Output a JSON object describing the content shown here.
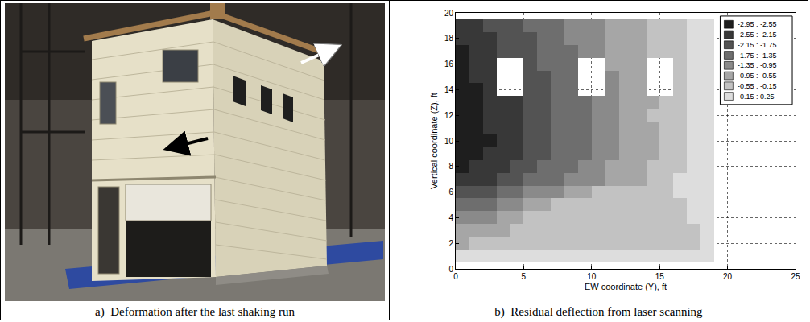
{
  "captions": [
    "a)  Deformation after the last shaking run",
    "b)  Residual deflection from laser scanning"
  ],
  "chart_data": {
    "type": "heatmap",
    "xlabel": "EW coordinate (Y), ft",
    "ylabel": "Vertical coordinate (Z), ft",
    "xlim": [
      0,
      25
    ],
    "xticks": [
      0,
      5,
      10,
      15,
      20,
      25
    ],
    "ylim": [
      0,
      20
    ],
    "yticks": [
      0,
      2,
      4,
      6,
      8,
      10,
      12,
      14,
      16,
      18,
      20
    ],
    "grid": true,
    "legend": "top right",
    "levels": [
      {
        "label": "-2.95 : -2.55",
        "range": [
          -2.95,
          -2.55
        ],
        "color": "#1e1e1e"
      },
      {
        "label": "-2.55 : -2.15",
        "range": [
          -2.55,
          -2.15
        ],
        "color": "#383838"
      },
      {
        "label": "-2.15 : -1.75",
        "range": [
          -2.15,
          -1.75
        ],
        "color": "#535353"
      },
      {
        "label": "-1.75 : -1.35",
        "range": [
          -1.75,
          -1.35
        ],
        "color": "#6e6e6e"
      },
      {
        "label": "-1.35 : -0.95",
        "range": [
          -1.35,
          -0.95
        ],
        "color": "#8a8a8a"
      },
      {
        "label": "-0.95 : -0.55",
        "range": [
          -0.95,
          -0.55
        ],
        "color": "#a6a6a6"
      },
      {
        "label": "-0.55 : -0.15",
        "range": [
          -0.55,
          -0.15
        ],
        "color": "#c2c2c2"
      },
      {
        "label": "-0.15 : 0.25",
        "range": [
          -0.15,
          0.25
        ],
        "color": "#dddddd"
      }
    ],
    "x": [
      0.5,
      1.5,
      2.5,
      3.5,
      4.5,
      5.5,
      6.5,
      7.5,
      8.5,
      9.5,
      10.5,
      11.5,
      12.5,
      13.5,
      14.5,
      15.5,
      16.5,
      17.5,
      18.5
    ],
    "y": [
      1,
      2,
      3,
      4,
      5,
      6,
      7,
      8,
      9,
      10,
      11,
      12,
      13,
      14,
      15,
      16,
      17,
      18,
      19
    ],
    "z": [
      [
        -0.12,
        -0.11,
        -0.1,
        -0.1,
        -0.09,
        -0.08,
        -0.08,
        -0.07,
        -0.07,
        -0.06,
        -0.06,
        -0.05,
        -0.05,
        -0.05,
        -0.04,
        -0.04,
        -0.03,
        -0.03,
        -0.02
      ],
      [
        -0.63,
        -0.53,
        -0.43,
        -0.36,
        -0.31,
        -0.29,
        -0.28,
        -0.27,
        -0.27,
        -0.26,
        -0.26,
        -0.25,
        -0.25,
        -0.24,
        -0.23,
        -0.22,
        -0.2,
        -0.17,
        -0.08
      ],
      [
        -0.93,
        -0.81,
        -0.69,
        -0.57,
        -0.45,
        -0.36,
        -0.32,
        -0.3,
        -0.29,
        -0.29,
        -0.28,
        -0.28,
        -0.27,
        -0.27,
        -0.26,
        -0.25,
        -0.22,
        -0.18,
        -0.08
      ],
      [
        -1.28,
        -1.13,
        -0.98,
        -0.83,
        -0.68,
        -0.53,
        -0.38,
        -0.33,
        -0.31,
        -0.3,
        -0.3,
        -0.29,
        -0.29,
        -0.28,
        -0.27,
        -0.25,
        -0.22,
        -0.1,
        -0.06
      ],
      [
        -1.73,
        -1.56,
        -1.39,
        -1.22,
        -1.05,
        -0.88,
        -0.71,
        -0.54,
        -0.37,
        -0.33,
        -0.31,
        -0.3,
        -0.3,
        -0.29,
        -0.28,
        -0.26,
        -0.22,
        -0.1,
        -0.06
      ],
      [
        -2.13,
        -1.97,
        -1.81,
        -1.65,
        -1.49,
        -1.33,
        -1.17,
        -1.01,
        -0.85,
        -0.69,
        -0.53,
        -0.37,
        -0.32,
        -0.3,
        -0.28,
        -0.25,
        -0.12,
        -0.08,
        -0.05
      ],
      [
        -2.45,
        -2.31,
        -2.16,
        -2.02,
        -1.87,
        -1.73,
        -1.58,
        -1.44,
        -1.29,
        -1.15,
        -1.0,
        -0.86,
        -0.71,
        -0.57,
        -0.42,
        -0.28,
        -0.13,
        0.01,
        0.1
      ],
      [
        -2.65,
        -2.5,
        -2.34,
        -2.19,
        -2.03,
        -1.88,
        -1.72,
        -1.57,
        -1.41,
        -1.26,
        -1.1,
        -0.95,
        -0.79,
        -0.64,
        -0.48,
        -0.33,
        -0.17,
        -0.02,
        0.14
      ],
      [
        -2.8,
        -2.64,
        -2.48,
        -2.32,
        -2.16,
        -2.0,
        -1.84,
        -1.68,
        -1.52,
        -1.36,
        -1.2,
        -1.04,
        -0.88,
        -0.72,
        -0.56,
        -0.4,
        -0.24,
        -0.08,
        0.08
      ],
      [
        -2.9,
        -2.74,
        -2.57,
        -2.41,
        -2.24,
        -2.08,
        -1.91,
        -1.75,
        -1.58,
        -1.42,
        -1.25,
        -1.09,
        -0.92,
        -0.76,
        -0.59,
        -0.43,
        -0.26,
        -0.1,
        0.07
      ],
      [
        -2.88,
        -2.72,
        -2.55,
        -2.39,
        -2.22,
        -2.06,
        -1.89,
        -1.73,
        -1.56,
        -1.4,
        -1.23,
        -1.07,
        -0.9,
        -0.74,
        -0.57,
        -0.41,
        -0.24,
        -0.08,
        0.09
      ],
      [
        -2.85,
        -2.69,
        -2.52,
        -2.36,
        -2.19,
        -2.03,
        -1.86,
        -1.7,
        -1.53,
        -1.37,
        -1.2,
        -1.04,
        -0.87,
        -0.71,
        -0.54,
        -0.38,
        -0.21,
        -0.05,
        0.12
      ],
      [
        -2.8,
        -2.64,
        -2.48,
        -2.32,
        -2.16,
        -2.0,
        -1.84,
        -1.68,
        -1.52,
        -1.36,
        -1.2,
        -1.04,
        -0.88,
        -0.72,
        -0.56,
        -0.4,
        -0.24,
        -0.08,
        0.08
      ],
      [
        -2.75,
        -2.59,
        -2.43,
        null,
        null,
        -1.95,
        -1.79,
        -1.63,
        -1.47,
        null,
        null,
        -0.99,
        -0.83,
        -0.67,
        null,
        null,
        -0.19,
        -0.03,
        0.13
      ],
      [
        -2.7,
        -2.55,
        -2.39,
        null,
        null,
        -1.93,
        -1.77,
        -1.62,
        -1.46,
        null,
        null,
        -0.99,
        -0.84,
        -0.69,
        null,
        null,
        -0.22,
        -0.07,
        0.09
      ],
      [
        -2.65,
        -2.5,
        -2.34,
        null,
        null,
        -1.88,
        -1.72,
        -1.57,
        -1.41,
        null,
        null,
        -0.95,
        -0.79,
        -0.64,
        null,
        null,
        -0.17,
        -0.02,
        0.14
      ],
      [
        -2.6,
        -2.45,
        -2.3,
        -2.15,
        -2.0,
        -1.85,
        -1.7,
        -1.55,
        -1.4,
        -1.25,
        -1.1,
        -0.95,
        -0.8,
        -0.65,
        -0.5,
        -0.35,
        -0.2,
        -0.05,
        0.1
      ],
      [
        -2.5,
        -2.36,
        -2.21,
        -2.07,
        -1.92,
        -1.78,
        -1.63,
        -1.49,
        -1.34,
        -1.2,
        -1.05,
        -0.91,
        -0.76,
        -0.62,
        -0.47,
        -0.33,
        -0.18,
        -0.04,
        0.11
      ],
      [
        -2.4,
        -2.26,
        -2.12,
        -1.98,
        -1.84,
        -1.7,
        -1.56,
        -1.42,
        -1.28,
        -1.14,
        -1.0,
        -0.86,
        -0.72,
        -0.58,
        -0.44,
        -0.3,
        -0.16,
        -0.02,
        0.12
      ]
    ]
  }
}
